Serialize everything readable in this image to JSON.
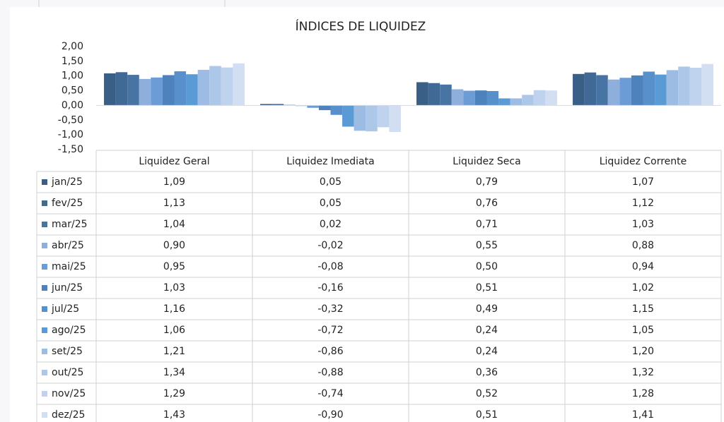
{
  "chart_data": {
    "type": "bar",
    "title": "ÍNDICES DE LIQUIDEZ",
    "categories": [
      "Liquidez Geral",
      "Liquidez Imediata",
      "Liquidez Seca",
      "Liquidez Corrente"
    ],
    "ylim": [
      -1.5,
      2
    ],
    "yticks": [
      {
        "value": -1.5,
        "label": "-1,50"
      },
      {
        "value": -1,
        "label": "-1,00"
      },
      {
        "value": -0.5,
        "label": "-0,50"
      },
      {
        "value": 0,
        "label": "0,00"
      },
      {
        "value": 0.5,
        "label": "0,50"
      },
      {
        "value": 1,
        "label": "1,00"
      },
      {
        "value": 1.5,
        "label": "1,50"
      },
      {
        "value": 2,
        "label": "2,00"
      }
    ],
    "grid": false,
    "series": [
      {
        "name": "jan/25",
        "color": "#3a5f86",
        "values": [
          1.09,
          0.05,
          0.79,
          1.07
        ],
        "value_labels": [
          "1,09",
          "0,05",
          "0,79",
          "1,07"
        ]
      },
      {
        "name": "fev/25",
        "color": "#406995",
        "values": [
          1.13,
          0.05,
          0.76,
          1.12
        ],
        "value_labels": [
          "1,13",
          "0,05",
          "0,76",
          "1,12"
        ]
      },
      {
        "name": "mar/25",
        "color": "#4874a4",
        "values": [
          1.04,
          0.02,
          0.71,
          1.03
        ],
        "value_labels": [
          "1,04",
          "0,02",
          "0,71",
          "1,03"
        ]
      },
      {
        "name": "abr/25",
        "color": "#8eaedc",
        "values": [
          0.9,
          -0.02,
          0.55,
          0.88
        ],
        "value_labels": [
          "0,90",
          "-0,02",
          "0,55",
          "0,88"
        ]
      },
      {
        "name": "mai/25",
        "color": "#6c9cd6",
        "values": [
          0.95,
          -0.08,
          0.5,
          0.94
        ],
        "value_labels": [
          "0,95",
          "-0,08",
          "0,50",
          "0,94"
        ]
      },
      {
        "name": "jun/25",
        "color": "#4d82bd",
        "values": [
          1.03,
          -0.16,
          0.51,
          1.02
        ],
        "value_labels": [
          "1,03",
          "-0,16",
          "0,51",
          "1,02"
        ]
      },
      {
        "name": "jul/25",
        "color": "#5890cc",
        "values": [
          1.16,
          -0.32,
          0.49,
          1.15
        ],
        "value_labels": [
          "1,16",
          "-0,32",
          "0,49",
          "1,15"
        ]
      },
      {
        "name": "ago/25",
        "color": "#5b9bd5",
        "values": [
          1.06,
          -0.72,
          0.24,
          1.05
        ],
        "value_labels": [
          "1,06",
          "-0,72",
          "0,24",
          "1,05"
        ]
      },
      {
        "name": "set/25",
        "color": "#9dbce4",
        "values": [
          1.21,
          -0.86,
          0.24,
          1.2
        ],
        "value_labels": [
          "1,21",
          "-0,86",
          "0,24",
          "1,20"
        ]
      },
      {
        "name": "out/25",
        "color": "#adc7e8",
        "values": [
          1.34,
          -0.88,
          0.36,
          1.32
        ],
        "value_labels": [
          "1,34",
          "-0,88",
          "0,36",
          "1,32"
        ]
      },
      {
        "name": "nov/25",
        "color": "#bfd3ee",
        "values": [
          1.29,
          -0.74,
          0.52,
          1.28
        ],
        "value_labels": [
          "1,29",
          "-0,74",
          "0,52",
          "1,28"
        ]
      },
      {
        "name": "dez/25",
        "color": "#d2dff2",
        "values": [
          1.43,
          -0.9,
          0.51,
          1.41
        ],
        "value_labels": [
          "1,43",
          "-0,90",
          "0,51",
          "1,41"
        ]
      }
    ]
  }
}
